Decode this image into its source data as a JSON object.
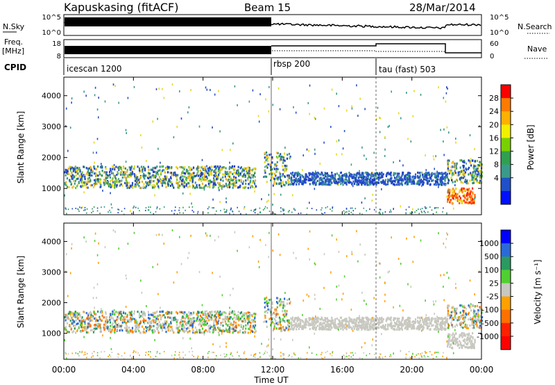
{
  "header": {
    "station": "Kapuskasing (fitACF)",
    "beam": "Beam 15",
    "date": "28/Mar/2014"
  },
  "side_labels": {
    "nsky": "N.Sky",
    "nsearch": "N.Search",
    "freq": "Freq.",
    "freq_unit": "[MHz]",
    "nave": "Nave",
    "cpid": "CPID"
  },
  "noise_panel": {
    "y_ticks_left": [
      "10^5",
      "10^0"
    ],
    "y_ticks_right": [
      "10^5",
      "10^0"
    ]
  },
  "freq_panel": {
    "y_ticks_left": [
      "18",
      "8"
    ],
    "y_ticks_right": [
      "60",
      "0"
    ]
  },
  "cpid_segments": [
    {
      "label": "icescan 1200",
      "start_hour": 0
    },
    {
      "label": "rbsp 200",
      "start_hour": 12
    },
    {
      "label": "tau (fast) 503",
      "start_hour": 18
    }
  ],
  "x_axis": {
    "ticks": [
      "00:00",
      "04:00",
      "08:00",
      "12:00",
      "16:00",
      "20:00",
      "00:00"
    ],
    "label": "Time UT"
  },
  "power_panel": {
    "ylabel": "Slant Range [km]",
    "y_ticks": [
      "1000",
      "2000",
      "3000",
      "4000"
    ],
    "colorbar_label": "Power [dB]",
    "colorbar_ticks": [
      "28",
      "24",
      "20",
      "16",
      "12",
      "8",
      "4"
    ],
    "colorbar_colors": [
      "#ff0000",
      "#ff7a00",
      "#ffb000",
      "#f0f000",
      "#78d000",
      "#30a050",
      "#3a9a8a",
      "#2050c8",
      "#0010ff"
    ]
  },
  "velocity_panel": {
    "ylabel": "Slant Range [km]",
    "y_ticks": [
      "1000",
      "2000",
      "3000",
      "4000"
    ],
    "colorbar_label": "Velocity [m s⁻¹]",
    "colorbar_ticks": [
      "1000",
      "500",
      "100",
      "25",
      "-25",
      "-100",
      "-500",
      "-1000"
    ],
    "colorbar_colors": [
      "#0000ff",
      "#2a6ad8",
      "#2a9a60",
      "#50d030",
      "#c8c8c0",
      "#ffa000",
      "#ff7000",
      "#ff2000",
      "#ff0000"
    ]
  },
  "chart_data": {
    "type": "heatmap",
    "x_range_hours": [
      0,
      24
    ],
    "y_range_km": [
      150,
      4600
    ],
    "scatter_bands": [
      {
        "t0": 0.0,
        "t1": 11.0,
        "r0": 1050,
        "r1": 1750,
        "power_class": "mid"
      },
      {
        "t0": 11.5,
        "t1": 13.0,
        "r0": 1100,
        "r1": 2200,
        "power_class": "mid"
      },
      {
        "t0": 13.0,
        "t1": 22.0,
        "r0": 1150,
        "r1": 1550,
        "power_class": "low"
      },
      {
        "t0": 22.0,
        "t1": 24.0,
        "r0": 1200,
        "r1": 1950,
        "power_class": "mid"
      },
      {
        "t0": 22.0,
        "t1": 23.6,
        "r0": 550,
        "r1": 1050,
        "power_class": "high"
      }
    ]
  }
}
